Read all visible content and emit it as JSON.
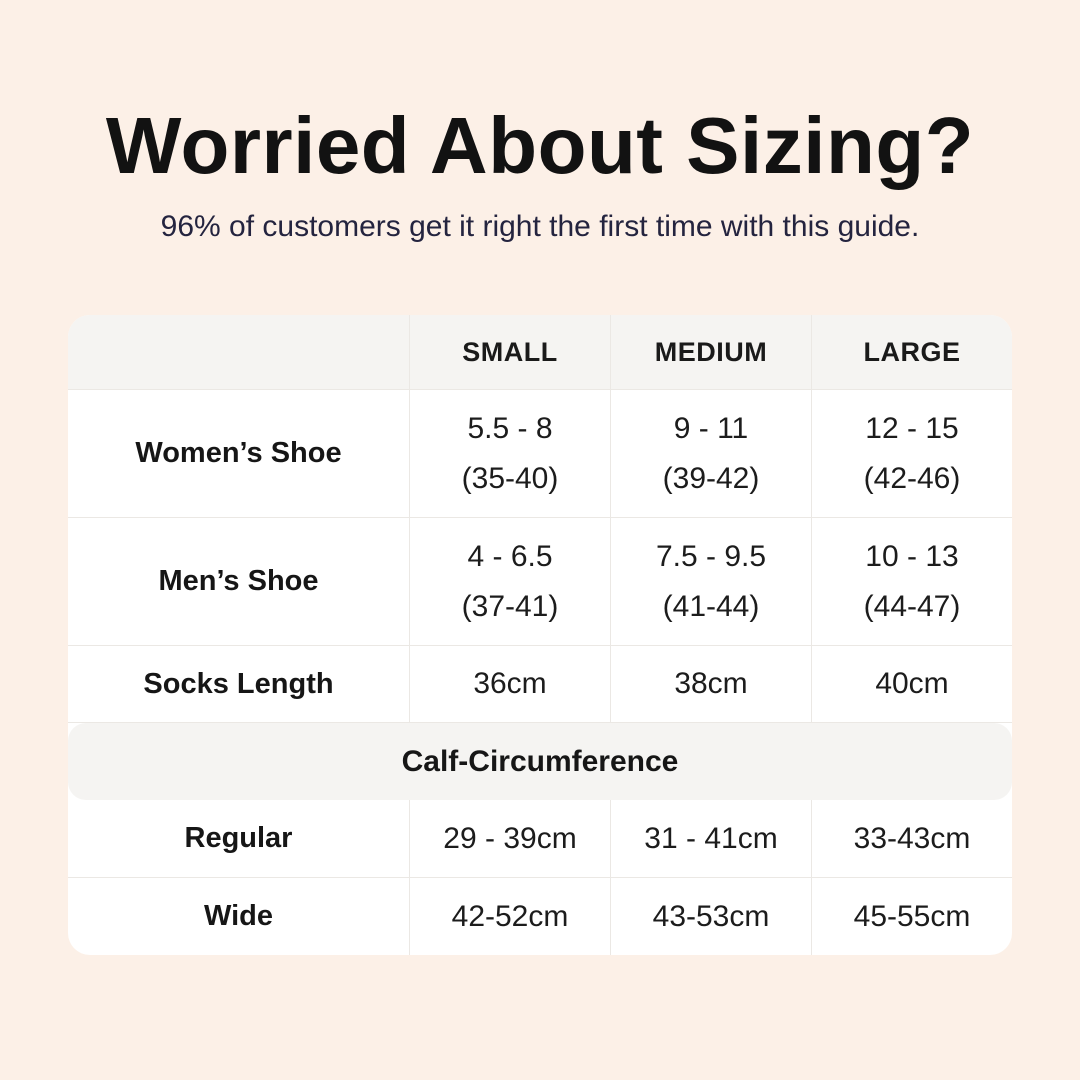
{
  "header": {
    "title": "Worried About Sizing?",
    "subtitle": "96% of customers get it right the first time with this guide."
  },
  "table": {
    "columns": [
      "SMALL",
      "MEDIUM",
      "LARGE"
    ],
    "rows": [
      {
        "label": "Women’s Shoe",
        "cells": [
          {
            "primary": "5.5 - 8",
            "secondary": "(35-40)"
          },
          {
            "primary": "9 - 11",
            "secondary": "(39-42)"
          },
          {
            "primary": "12 - 15",
            "secondary": "(42-46)"
          }
        ]
      },
      {
        "label": "Men’s Shoe",
        "cells": [
          {
            "primary": "4 - 6.5",
            "secondary": "(37-41)"
          },
          {
            "primary": "7.5 - 9.5",
            "secondary": "(41-44)"
          },
          {
            "primary": "10 - 13",
            "secondary": "(44-47)"
          }
        ]
      },
      {
        "label": "Socks Length",
        "cells": [
          {
            "primary": "36cm"
          },
          {
            "primary": "38cm"
          },
          {
            "primary": "40cm"
          }
        ]
      }
    ],
    "section_header": "Calf-Circumference",
    "section_rows": [
      {
        "label": "Regular",
        "cells": [
          {
            "primary": "29 - 39cm"
          },
          {
            "primary": "31 - 41cm"
          },
          {
            "primary": "33-43cm"
          }
        ]
      },
      {
        "label": "Wide",
        "cells": [
          {
            "primary": "42-52cm"
          },
          {
            "primary": "43-53cm"
          },
          {
            "primary": "45-55cm"
          }
        ]
      }
    ]
  },
  "colors": {
    "background": "#FCF0E7",
    "card": "#FFFFFF",
    "header_bg": "#F5F4F2",
    "divider": "#EBE8E4",
    "title_text": "#121212",
    "subtitle_text": "#24243F",
    "table_text": "#1C1C1C"
  },
  "chart_data": {
    "type": "table",
    "title": "Worried About Sizing?",
    "subtitle": "96% of customers get it right the first time with this guide.",
    "columns": [
      "",
      "SMALL",
      "MEDIUM",
      "LARGE"
    ],
    "rows": [
      [
        "Women’s Shoe",
        "5.5 - 8 (35-40)",
        "9 - 11 (39-42)",
        "12 - 15 (42-46)"
      ],
      [
        "Men’s Shoe",
        "4 - 6.5 (37-41)",
        "7.5 - 9.5 (41-44)",
        "10 - 13 (44-47)"
      ],
      [
        "Socks Length",
        "36cm",
        "38cm",
        "40cm"
      ],
      [
        "Calf-Circumference (section header)",
        "",
        "",
        ""
      ],
      [
        "Regular",
        "29 - 39cm",
        "31 - 41cm",
        "33-43cm"
      ],
      [
        "Wide",
        "42-52cm",
        "43-53cm",
        "45-55cm"
      ]
    ],
    "layout_hints": {
      "section_header_row_index": 3,
      "header_background": "#F5F4F2",
      "grid": "light-gray dividers, rounded white card on cream background"
    }
  }
}
